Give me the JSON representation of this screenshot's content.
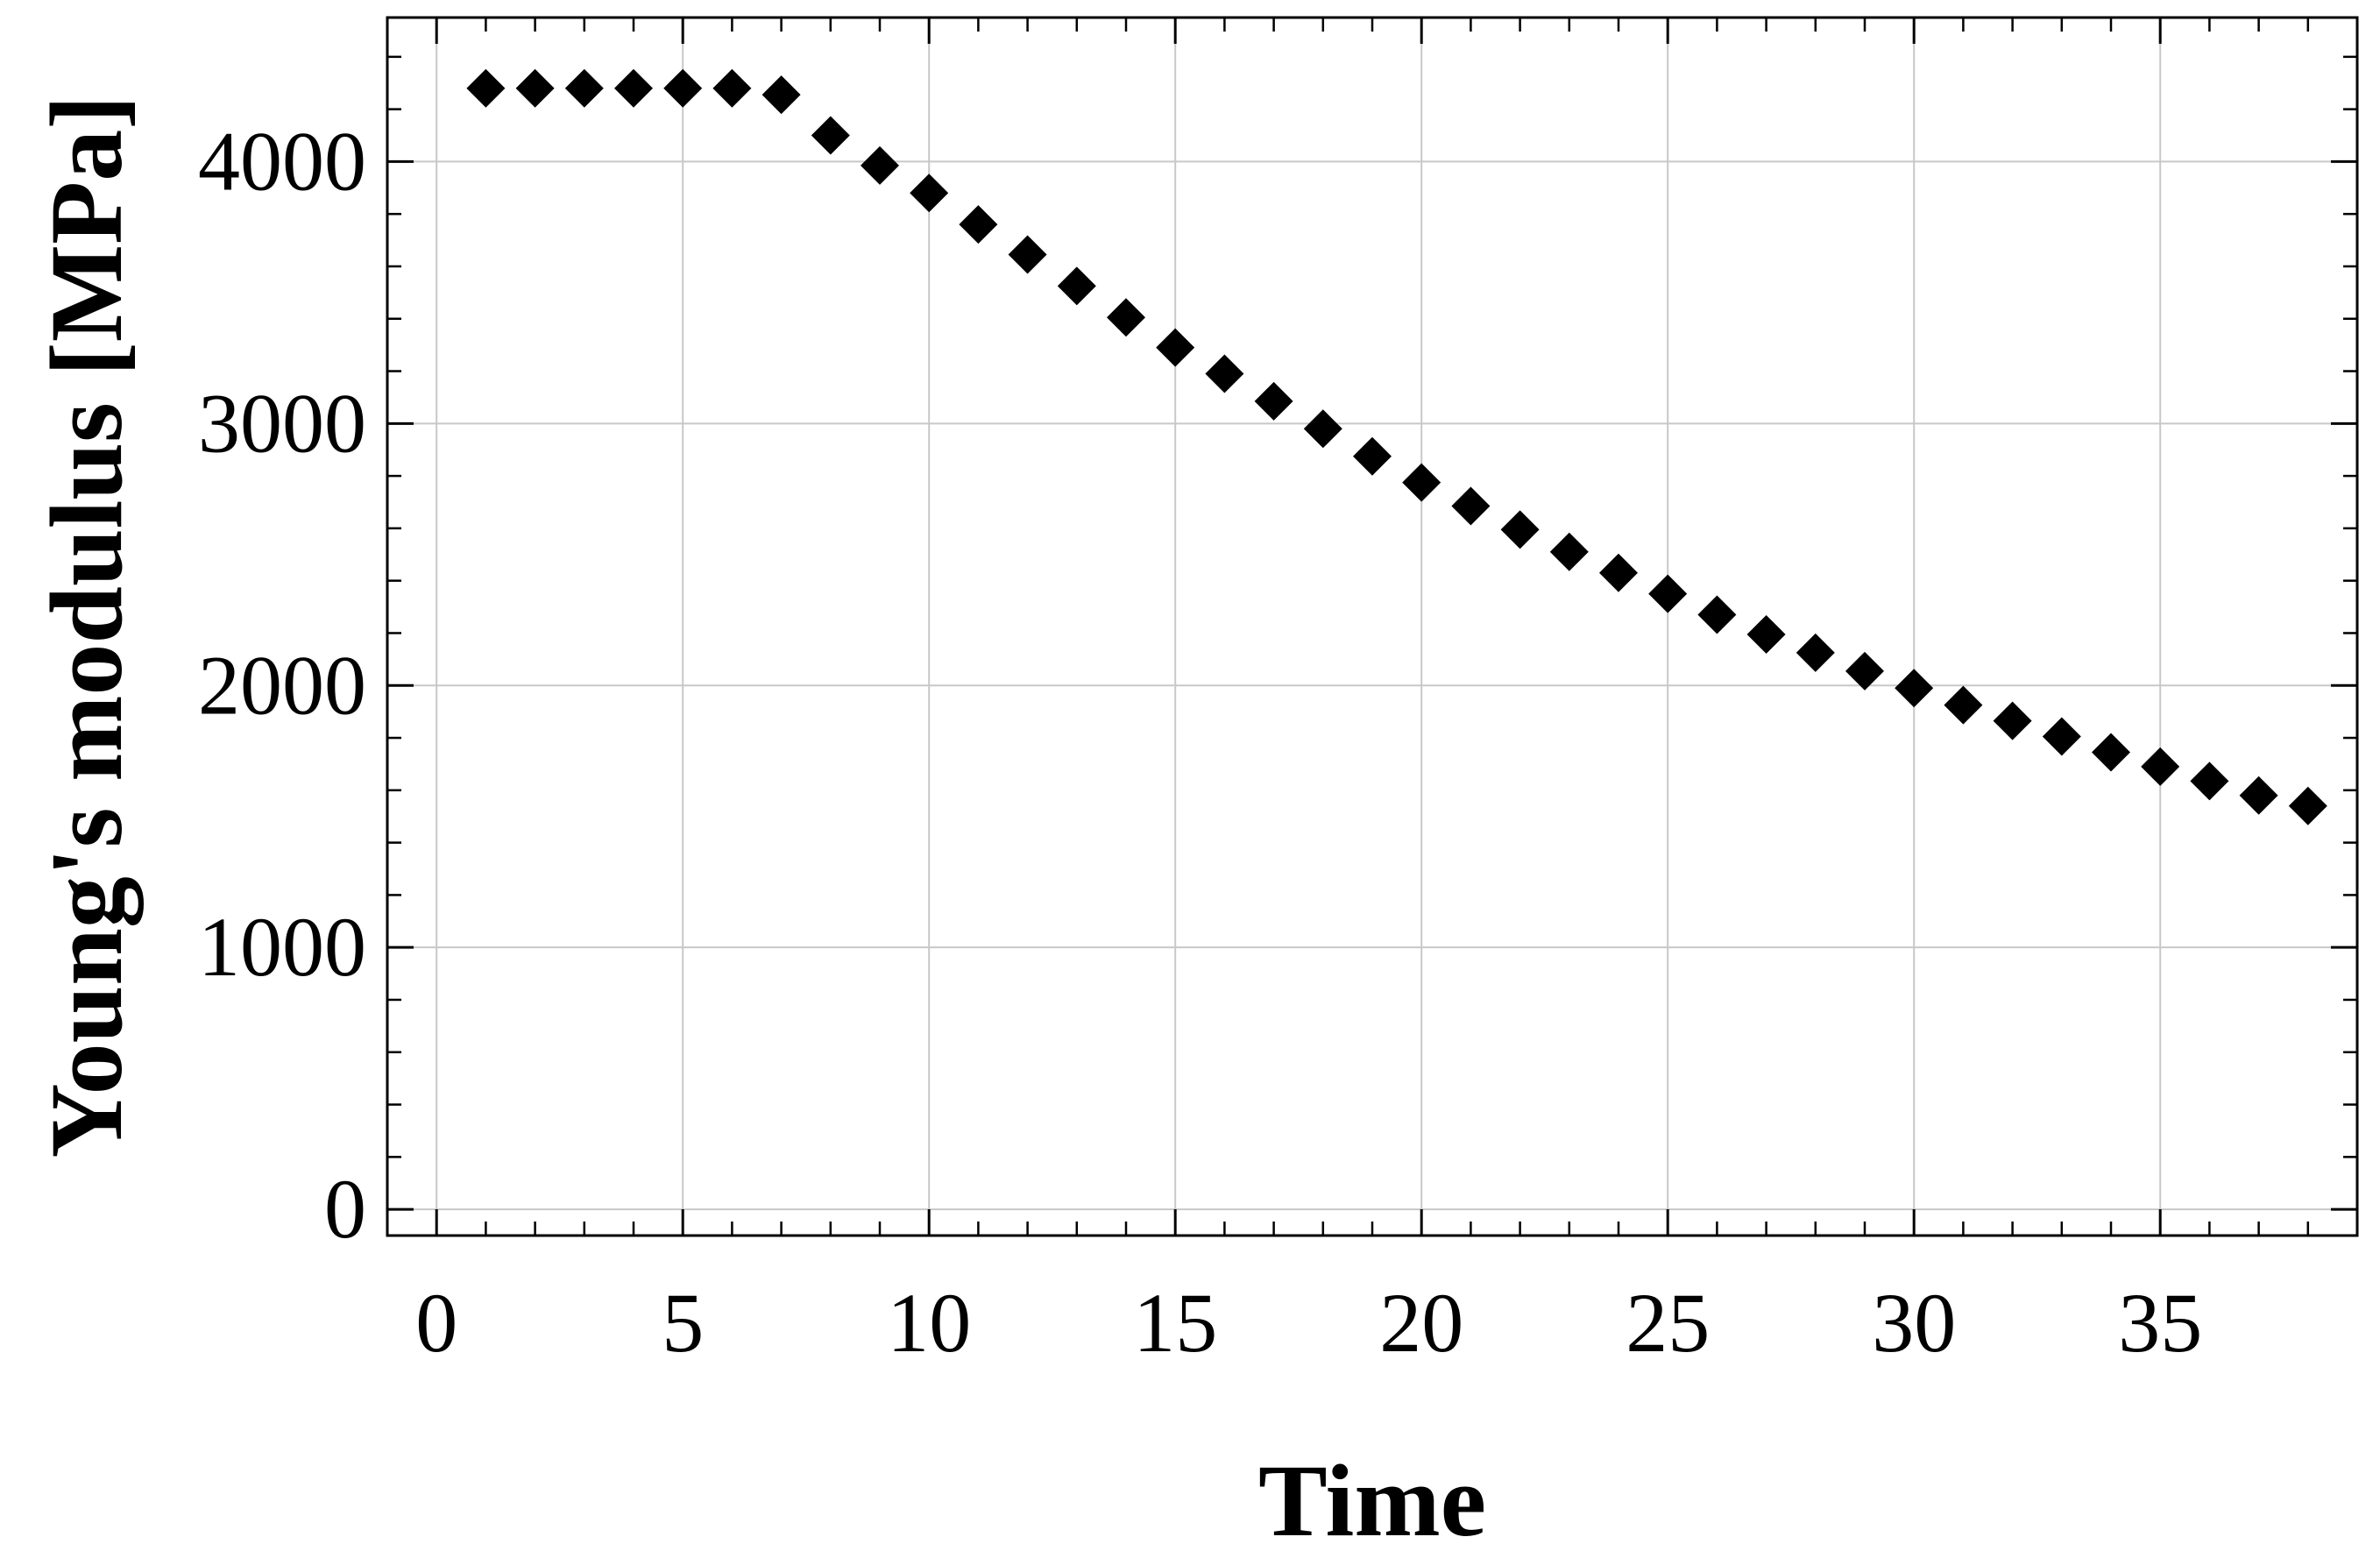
{
  "chart_data": {
    "type": "scatter",
    "title": "",
    "xlabel": "Time",
    "ylabel": "Young's modulus [MPa]",
    "xlim": [
      -1,
      39
    ],
    "ylim": [
      -100,
      4550
    ],
    "grid": true,
    "marker": "diamond",
    "marker_color": "#000000",
    "x_ticks": [
      0,
      5,
      10,
      15,
      20,
      25,
      30,
      35
    ],
    "x_tick_labels": [
      "0",
      "5",
      "10",
      "15",
      "20",
      "25",
      "30",
      "35"
    ],
    "y_ticks": [
      0,
      1000,
      2000,
      3000,
      4000
    ],
    "y_tick_labels": [
      "0",
      "1000",
      "2000",
      "3000",
      "4000"
    ],
    "x_minor_step": 1,
    "y_minor_step": 200,
    "series": [
      {
        "x": [
          1,
          2,
          3,
          4,
          5,
          6,
          7,
          8,
          9,
          10,
          11,
          12,
          13,
          14,
          15,
          16,
          17,
          18,
          19,
          20,
          21,
          22,
          23,
          24,
          25,
          26,
          27,
          28,
          29,
          30,
          31,
          32,
          33,
          34,
          35,
          36,
          37,
          38
        ],
        "y": [
          4280,
          4280,
          4280,
          4280,
          4280,
          4280,
          4255,
          4100,
          3985,
          3880,
          3760,
          3645,
          3525,
          3405,
          3290,
          3190,
          3085,
          2980,
          2875,
          2775,
          2685,
          2595,
          2510,
          2430,
          2350,
          2270,
          2195,
          2125,
          2055,
          1990,
          1925,
          1865,
          1805,
          1745,
          1690,
          1635,
          1580,
          1540
        ]
      }
    ]
  }
}
